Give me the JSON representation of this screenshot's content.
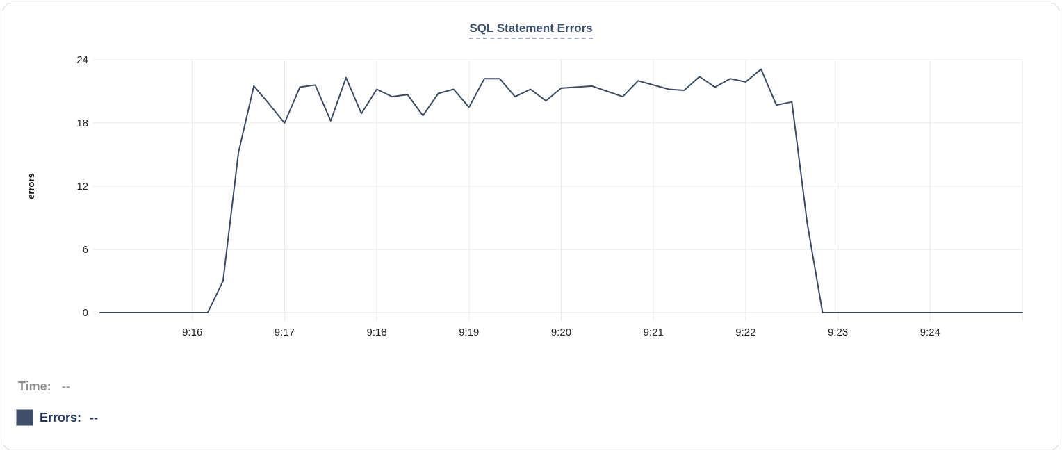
{
  "card": {
    "title": "SQL Statement Errors"
  },
  "chart_data": {
    "type": "line",
    "title": "SQL Statement Errors",
    "xlabel": "",
    "ylabel": "errors",
    "ylim": [
      0,
      24
    ],
    "y_ticks": [
      0,
      6,
      12,
      18,
      24
    ],
    "grid": true,
    "legend_position": "bottom-left",
    "x_start_time": "9:15:00",
    "x_end_time": "9:25:00",
    "x_interval_seconds": 10,
    "x_total_seconds": 600,
    "x_tick_labels": [
      "9:16",
      "9:17",
      "9:18",
      "9:19",
      "9:20",
      "9:21",
      "9:22",
      "9:23",
      "9:24",
      ""
    ],
    "series": [
      {
        "name": "Errors",
        "color": "#3b4a63",
        "values": [
          0,
          0,
          0,
          0,
          0,
          0,
          0,
          0,
          3,
          15.2,
          21.5,
          19.8,
          18,
          21.4,
          21.6,
          18.2,
          22.3,
          18.9,
          21.2,
          20.5,
          20.7,
          18.7,
          20.8,
          21.2,
          19.5,
          22.2,
          22.2,
          20.5,
          21.2,
          20.1,
          21.3,
          21.4,
          21.5,
          21,
          20.5,
          22,
          21.6,
          21.2,
          21.1,
          22.4,
          21.4,
          22.2,
          21.9,
          23.1,
          19.7,
          20,
          8.5,
          0,
          0,
          0,
          0,
          0,
          0,
          0,
          0,
          0,
          0,
          0,
          0,
          0,
          0
        ]
      }
    ]
  },
  "tooltip": {
    "time_label": "Time:",
    "time_value": "--",
    "errors_label": "Errors:",
    "errors_value": "--"
  },
  "colors": {
    "line": "#3b4a63",
    "grid": "#e9e9e9",
    "title": "#3c4f6b",
    "title_underline": "#a9b2c3",
    "tick_label": "#262626",
    "axis_title": "#111111",
    "time_label": "#8d8d8d",
    "errors_label": "#24355c",
    "swatch": "#3f4f6a",
    "card_border": "#d9dbe0"
  }
}
